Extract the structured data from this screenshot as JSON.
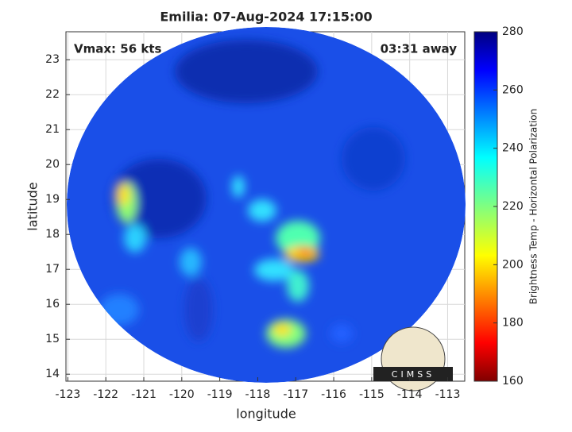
{
  "chart_data": {
    "type": "image-map",
    "title": "Emilia: 07-Aug-2024 17:15:00",
    "annotations": [
      "Vmax: 56 kts",
      "03:31 away"
    ],
    "logo_text": "CIMSS",
    "x_label": "longitude",
    "y_label": "latitude",
    "xlim": [
      -123.05,
      -112.55
    ],
    "xticks": [
      -123,
      -122,
      -121,
      -120,
      -119,
      -118,
      -117,
      -116,
      -115,
      -114,
      -113
    ],
    "ylim": [
      13.8,
      23.8
    ],
    "yticks": [
      14,
      15,
      16,
      17,
      18,
      19,
      20,
      21,
      22,
      23
    ],
    "grid": true,
    "colorbar": {
      "label": "Brightness Temp - Horizontal Polarization",
      "lim": [
        160,
        280
      ],
      "ticks": [
        160,
        180,
        200,
        220,
        240,
        260,
        280
      ],
      "colormap": "jet"
    }
  }
}
